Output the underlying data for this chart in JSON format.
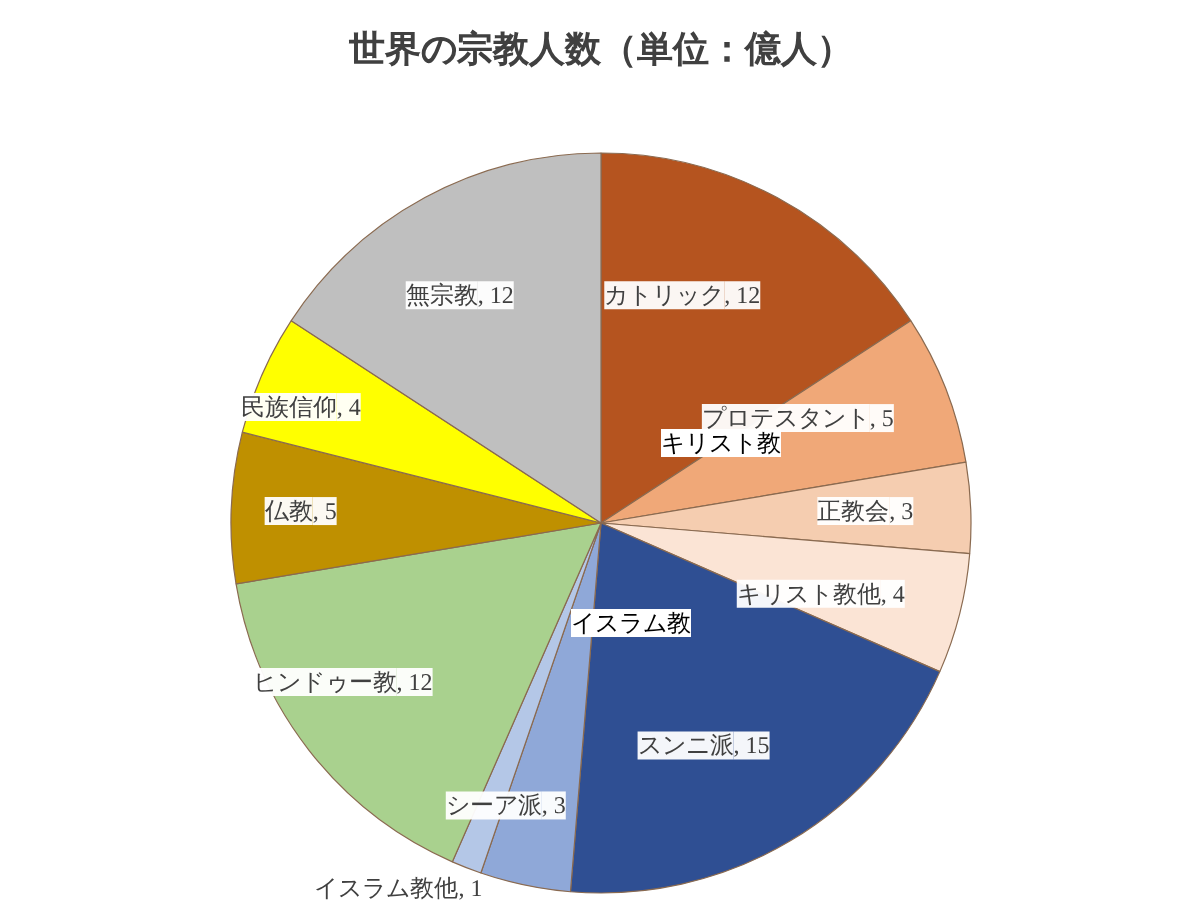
{
  "chart_data": {
    "type": "pie",
    "title": "世界の宗教人数（単位：億人）",
    "categories": [
      "カトリック",
      "プロテスタント",
      "正教会",
      "キリスト教他",
      "スンニ派",
      "シーア派",
      "イスラム教他",
      "ヒンドゥー教",
      "仏教",
      "民族信仰",
      "無宗教"
    ],
    "values": [
      12,
      5,
      3,
      4,
      15,
      3,
      1,
      12,
      5,
      4,
      12
    ],
    "value_labels": [
      ", 12",
      ", 5",
      ", 3",
      ", 4",
      ", 15",
      ", 3",
      ", 1",
      ", 12",
      ", 5",
      ", 4",
      ", 12"
    ],
    "colors": [
      "#b5541f",
      "#f0a878",
      "#f5cdb0",
      "#fbe4d5",
      "#2f4f93",
      "#8fa8d8",
      "#b4c7e7",
      "#a9d18e",
      "#bf9000",
      "#ffff00",
      "#bfbfbf"
    ],
    "annotations": [
      "キリスト教",
      "イスラム教"
    ]
  }
}
